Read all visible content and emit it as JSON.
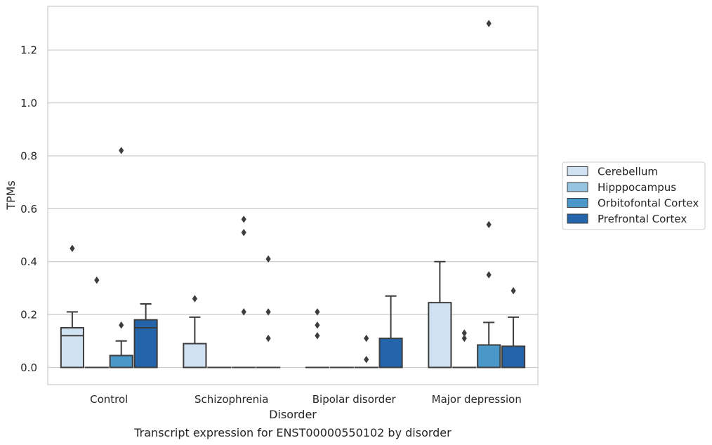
{
  "chart_data": {
    "type": "box",
    "title": "Transcript expression for ENST00000550102 by disorder",
    "xlabel": "Disorder",
    "ylabel": "TPMs",
    "categories": [
      "Control",
      "Schizophrenia",
      "Bipolar disorder",
      "Major depression"
    ],
    "ylim": [
      -0.065,
      1.365
    ],
    "yticks": [
      0.0,
      0.2,
      0.4,
      0.6,
      0.8,
      1.0,
      1.2
    ],
    "ytick_labels": [
      "0.0",
      "0.2",
      "0.4",
      "0.6",
      "0.8",
      "1.0",
      "1.2"
    ],
    "grid": "horizontal",
    "legend_position": "right",
    "series": [
      {
        "name": "Cerebellum",
        "color": "#d0e1f2",
        "boxes": [
          {
            "q1": 0.0,
            "median": 0.12,
            "q3": 0.15,
            "whisker_low": 0.0,
            "whisker_high": 0.21,
            "outliers": [
              0.45
            ]
          },
          {
            "q1": 0.0,
            "median": 0.0,
            "q3": 0.09,
            "whisker_low": 0.0,
            "whisker_high": 0.19,
            "outliers": [
              0.26
            ]
          },
          {
            "q1": 0.0,
            "median": 0.0,
            "q3": 0.0,
            "whisker_low": 0.0,
            "whisker_high": 0.0,
            "outliers": [
              0.12,
              0.16,
              0.21
            ]
          },
          {
            "q1": 0.0,
            "median": 0.0,
            "q3": 0.245,
            "whisker_low": 0.0,
            "whisker_high": 0.4,
            "outliers": []
          }
        ]
      },
      {
        "name": "Hipppocampus",
        "color": "#94c4df",
        "boxes": [
          {
            "q1": 0.0,
            "median": 0.0,
            "q3": 0.0,
            "whisker_low": 0.0,
            "whisker_high": 0.0,
            "outliers": [
              0.33
            ]
          },
          {
            "q1": 0.0,
            "median": 0.0,
            "q3": 0.0,
            "whisker_low": 0.0,
            "whisker_high": 0.0,
            "outliers": []
          },
          {
            "q1": 0.0,
            "median": 0.0,
            "q3": 0.0,
            "whisker_low": 0.0,
            "whisker_high": 0.0,
            "outliers": []
          },
          {
            "q1": 0.0,
            "median": 0.0,
            "q3": 0.0,
            "whisker_low": 0.0,
            "whisker_high": 0.0,
            "outliers": [
              0.11,
              0.13
            ]
          }
        ]
      },
      {
        "name": "Orbitofontal Cortex",
        "color": "#4a98c9",
        "boxes": [
          {
            "q1": 0.0,
            "median": 0.0,
            "q3": 0.045,
            "whisker_low": 0.0,
            "whisker_high": 0.1,
            "outliers": [
              0.16,
              0.82
            ]
          },
          {
            "q1": 0.0,
            "median": 0.0,
            "q3": 0.0,
            "whisker_low": 0.0,
            "whisker_high": 0.0,
            "outliers": [
              0.21,
              0.51,
              0.56
            ]
          },
          {
            "q1": 0.0,
            "median": 0.0,
            "q3": 0.0,
            "whisker_low": 0.0,
            "whisker_high": 0.0,
            "outliers": [
              0.03,
              0.11
            ]
          },
          {
            "q1": 0.0,
            "median": 0.0,
            "q3": 0.085,
            "whisker_low": 0.0,
            "whisker_high": 0.17,
            "outliers": [
              0.35,
              0.54,
              1.3
            ]
          }
        ]
      },
      {
        "name": "Prefrontal Cortex",
        "color": "#2364aa",
        "boxes": [
          {
            "q1": 0.0,
            "median": 0.15,
            "q3": 0.18,
            "whisker_low": 0.0,
            "whisker_high": 0.24,
            "outliers": []
          },
          {
            "q1": 0.0,
            "median": 0.0,
            "q3": 0.0,
            "whisker_low": 0.0,
            "whisker_high": 0.0,
            "outliers": [
              0.11,
              0.21,
              0.41
            ]
          },
          {
            "q1": 0.0,
            "median": 0.0,
            "q3": 0.11,
            "whisker_low": 0.0,
            "whisker_high": 0.27,
            "outliers": []
          },
          {
            "q1": 0.0,
            "median": 0.0,
            "q3": 0.08,
            "whisker_low": 0.0,
            "whisker_high": 0.19,
            "outliers": [
              0.29
            ]
          }
        ]
      }
    ]
  }
}
